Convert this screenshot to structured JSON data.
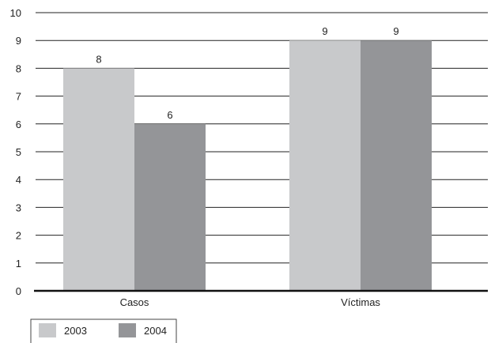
{
  "chart_data": {
    "type": "bar",
    "categories": [
      "Casos",
      "Víctimas"
    ],
    "series": [
      {
        "name": "2003",
        "values": [
          8,
          9
        ],
        "color": "#c8c9cb"
      },
      {
        "name": "2004",
        "values": [
          6,
          9
        ],
        "color": "#949598"
      }
    ],
    "ylim": [
      0,
      10
    ],
    "yticks": [
      0,
      1,
      2,
      3,
      4,
      5,
      6,
      7,
      8,
      9,
      10
    ],
    "grid": true,
    "legend_position": "bottom-left",
    "data_labels": true
  }
}
